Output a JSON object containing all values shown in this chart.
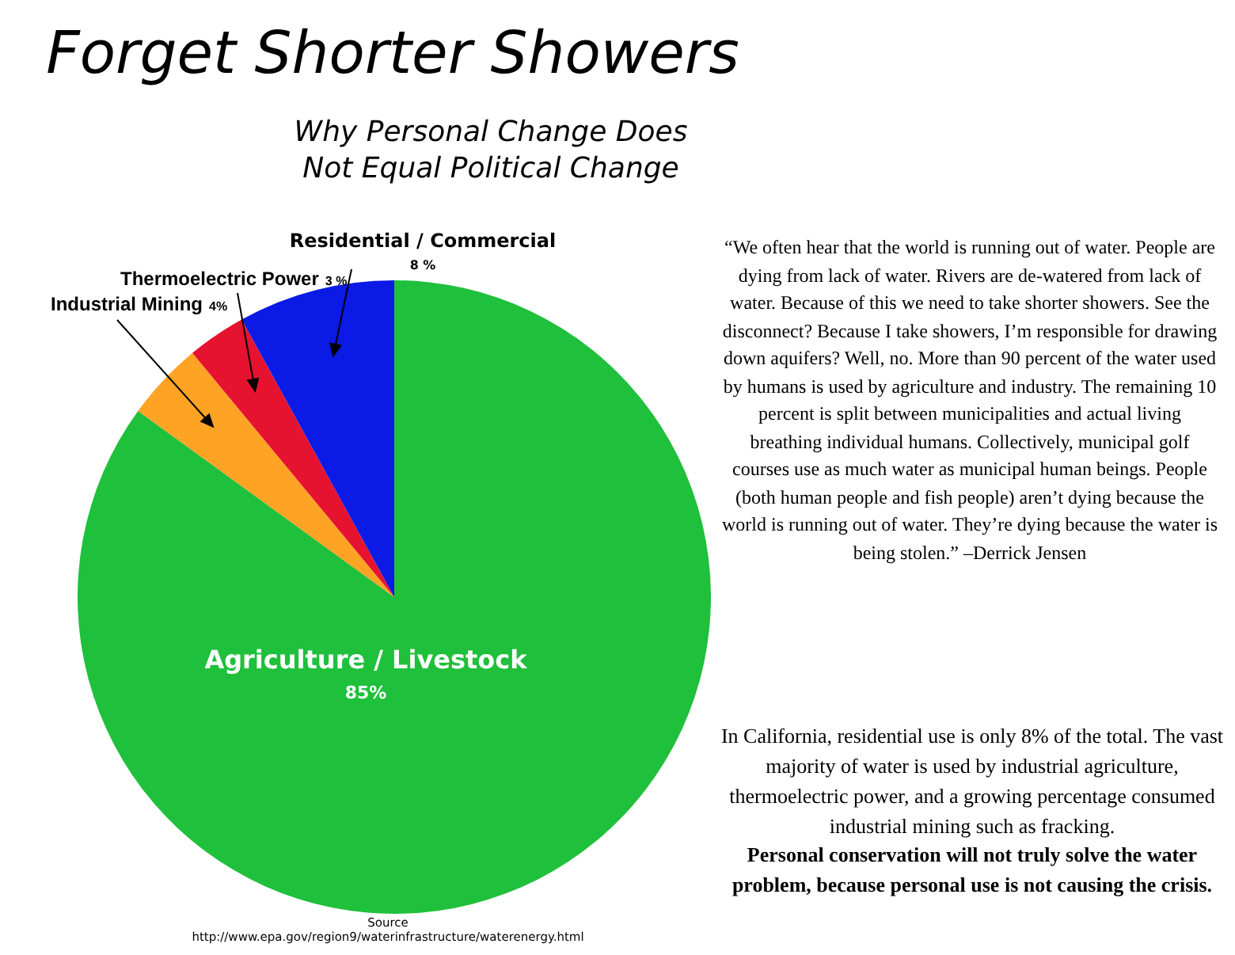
{
  "chart_data": {
    "type": "pie",
    "title": "Forget Shorter Showers",
    "subtitle": "Why Personal Change Does Not Equal Political Change",
    "categories": [
      "Agriculture / Livestock",
      "Industrial Mining",
      "Thermoelectric Power",
      "Residential / Commercial"
    ],
    "values": [
      85,
      4,
      3,
      8
    ],
    "colors": [
      "#1fc03c",
      "#ffa324",
      "#e5132f",
      "#0b1ae4"
    ],
    "value_labels": [
      "85%",
      "4%",
      "3 %",
      "8 %"
    ],
    "legend": false,
    "annotations": [
      "“We often hear that the world is running out of water. People are dying from lack of water. Rivers are de-watered from lack of water. Because of this we need to take shorter showers. See the disconnect? Because I take showers, I’m responsible for drawing down aquifers? Well, no. More than 90 percent of the water used by humans is used by agriculture and industry. The remaining 10 percent is split between municipalities and actual living breathing individual humans. Collectively, municipal golf courses use as much water as municipal human beings. People (both human people and fish people) aren’t dying because the world is running out of water. They’re dying because the water is being stolen.” –Derrick Jensen",
      "In California, residential use is only 8% of the total. The vast majority of water is used by industrial agriculture, thermoelectric power, and a growing percentage consumed industrial mining such as fracking.",
      "Personal conservation will not truly solve the water problem, because personal use is not causing the crisis.",
      "Source",
      "http://www.epa.gov/region9/waterinfrastructure/waterenergy.html"
    ]
  }
}
